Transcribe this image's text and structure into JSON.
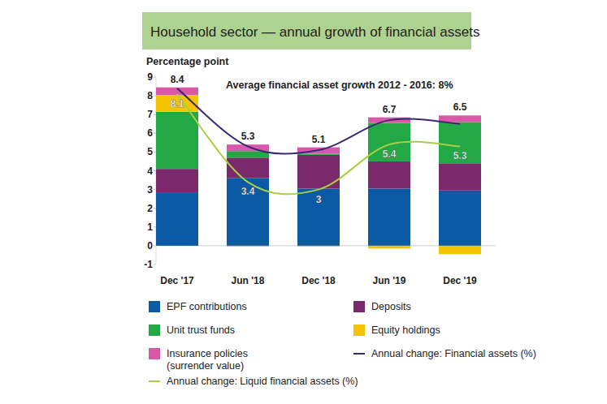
{
  "chart_data": {
    "type": "bar",
    "title": "Household sector — annual growth of financial assets",
    "y_label": "Percentage point",
    "annotation": "Average financial asset growth 2012 - 2016: 8%",
    "categories": [
      "Dec '17",
      "Jun '18",
      "Dec '18",
      "Jun '19",
      "Dec '19"
    ],
    "stacked": true,
    "grid": false,
    "legend": "bottom",
    "ylim": [
      -1,
      9
    ],
    "yticks": [
      -1,
      0,
      1,
      2,
      3,
      4,
      5,
      6,
      7,
      8,
      9
    ],
    "series": [
      {
        "name": "EPF contributions",
        "color": "#0b5aa6",
        "values": [
          2.85,
          3.6,
          3.05,
          3.05,
          2.95
        ]
      },
      {
        "name": "Deposits",
        "color": "#7a2a6a",
        "values": [
          1.25,
          1.1,
          1.8,
          1.45,
          1.45
        ]
      },
      {
        "name": "Unit trust funds",
        "color": "#22a845",
        "values": [
          3.05,
          0.35,
          0.05,
          2.05,
          2.2
        ]
      },
      {
        "name": "Equity holdings",
        "color": "#f5c400",
        "values": [
          0.9,
          -0.05,
          -0.05,
          -0.15,
          -0.45
        ]
      },
      {
        "name": "Insurance policies\n(surrender value)",
        "color": "#d958a8",
        "values": [
          0.4,
          0.35,
          0.35,
          0.3,
          0.35
        ]
      },
      {
        "name": "Annual change: Financial assets (%)",
        "type": "line",
        "color": "#3b2a70",
        "data_labels": true,
        "values": [
          8.4,
          5.3,
          5.1,
          6.7,
          6.5
        ]
      },
      {
        "name": "Annual change: Liquid financial assets (%)",
        "type": "line",
        "color": "#a9cf45",
        "data_labels": true,
        "values": [
          8.1,
          3.4,
          3.0,
          5.4,
          5.3
        ]
      }
    ]
  }
}
